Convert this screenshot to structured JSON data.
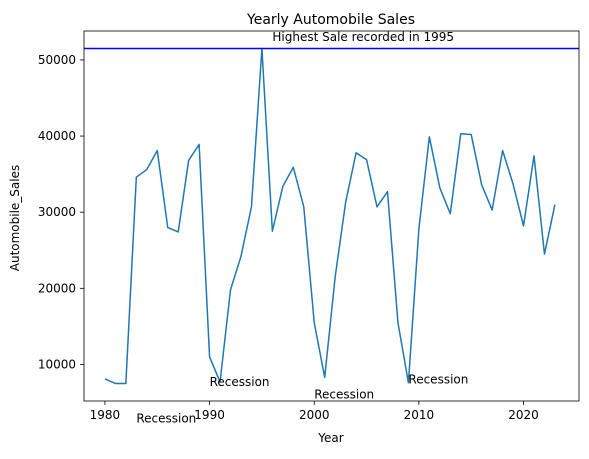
{
  "chart_data": {
    "type": "line",
    "title": "Yearly Automobile Sales",
    "xlabel": "Year",
    "ylabel": "Automobile_Sales",
    "xlim": [
      1978,
      2025.3
    ],
    "ylim": [
      5200,
      53800
    ],
    "xticks": [
      1980,
      1990,
      2000,
      2010,
      2020
    ],
    "yticks": [
      10000,
      20000,
      30000,
      40000,
      50000
    ],
    "grid": false,
    "series": [
      {
        "color": "#1f77b4",
        "x": [
          1980,
          1981,
          1982,
          1983,
          1984,
          1985,
          1986,
          1987,
          1988,
          1989,
          1990,
          1991,
          1992,
          1993,
          1994,
          1995,
          1996,
          1997,
          1998,
          1999,
          2000,
          2001,
          2002,
          2003,
          2004,
          2005,
          2006,
          2007,
          2008,
          2009,
          2010,
          2011,
          2012,
          2013,
          2014,
          2015,
          2016,
          2017,
          2018,
          2019,
          2020,
          2021,
          2022,
          2023
        ],
        "y": [
          8100,
          7500,
          7500,
          34600,
          35600,
          38100,
          28000,
          27400,
          36800,
          38900,
          11000,
          7700,
          19800,
          24200,
          30700,
          51500,
          27500,
          33400,
          35900,
          30700,
          15500,
          8300,
          21500,
          31300,
          37800,
          36900,
          30700,
          32700,
          15500,
          7600,
          27800,
          39900,
          33200,
          29800,
          40300,
          40200,
          33600,
          30300,
          38100,
          33700,
          28200,
          37400,
          24500,
          31000
        ]
      }
    ],
    "reference_line": {
      "y": 51500,
      "color": "#0000ff",
      "label": "Highest Sale recorded in 1995",
      "label_x": 1996,
      "label_y": 52500
    },
    "annotations": [
      {
        "text": "Recession",
        "x": 1983,
        "y": 2400,
        "align": "start"
      },
      {
        "text": "Recession",
        "x": 1990,
        "y": 7200,
        "align": "start"
      },
      {
        "text": "Recession",
        "x": 2000,
        "y": 5500,
        "align": "start"
      },
      {
        "text": "Recession",
        "x": 2009,
        "y": 7500,
        "align": "start"
      }
    ]
  }
}
